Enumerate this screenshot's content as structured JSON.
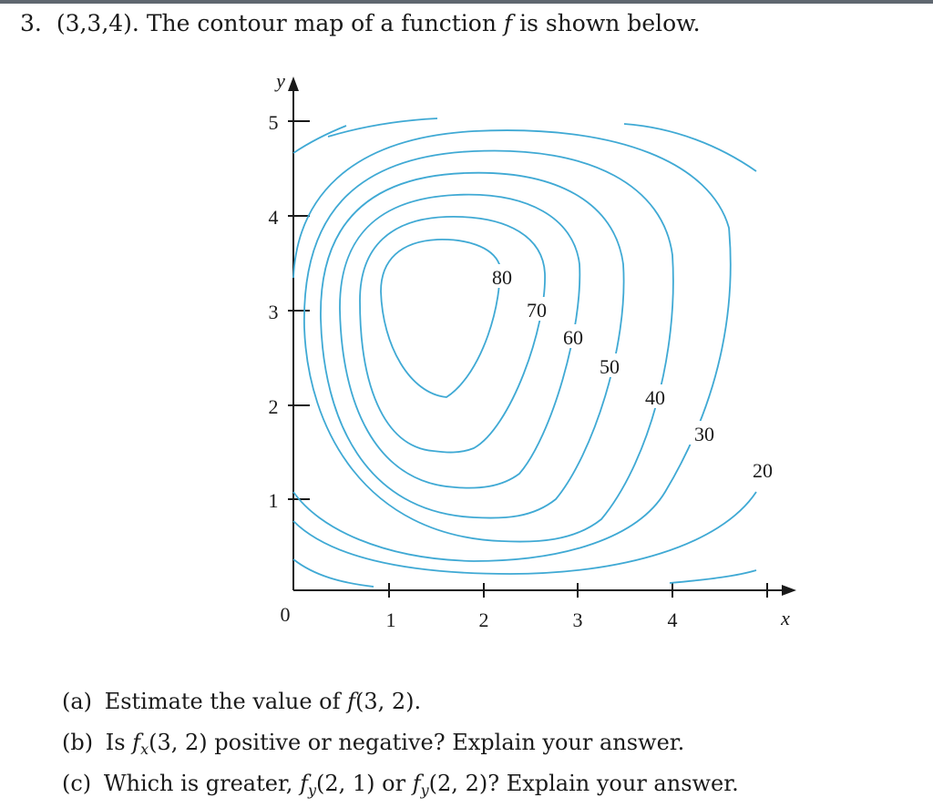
{
  "header": {
    "number": "3.",
    "points": "(3,3,4).",
    "text_before": "The contour map of a function",
    "function_symbol": "f",
    "text_after": "is shown below."
  },
  "figure": {
    "axis_x_label": "x",
    "axis_y_label": "y",
    "origin_label": "0",
    "x_ticks": [
      "1",
      "2",
      "3",
      "4"
    ],
    "y_ticks": [
      "1",
      "2",
      "3",
      "4",
      "5"
    ],
    "contour_labels": [
      "80",
      "70",
      "60",
      "50",
      "40",
      "30",
      "20"
    ],
    "line_color": "#3fa9d4"
  },
  "questions": [
    {
      "label": "(a)",
      "text": "Estimate the value of",
      "expr_func": "f",
      "expr_args": "(3, 2).",
      "tail": ""
    },
    {
      "label": "(b)",
      "text": "Is",
      "expr_func": "f",
      "expr_sub": "x",
      "expr_args": "(3, 2)",
      "tail": "positive or negative? Explain your answer."
    },
    {
      "label": "(c)",
      "text": "Which is greater,",
      "expr1_func": "f",
      "expr1_sub": "y",
      "expr1_args": "(2, 1)",
      "connector": "or",
      "expr2_func": "f",
      "expr2_sub": "y",
      "expr2_args": "(2, 2)?",
      "tail": "Explain your answer."
    }
  ]
}
